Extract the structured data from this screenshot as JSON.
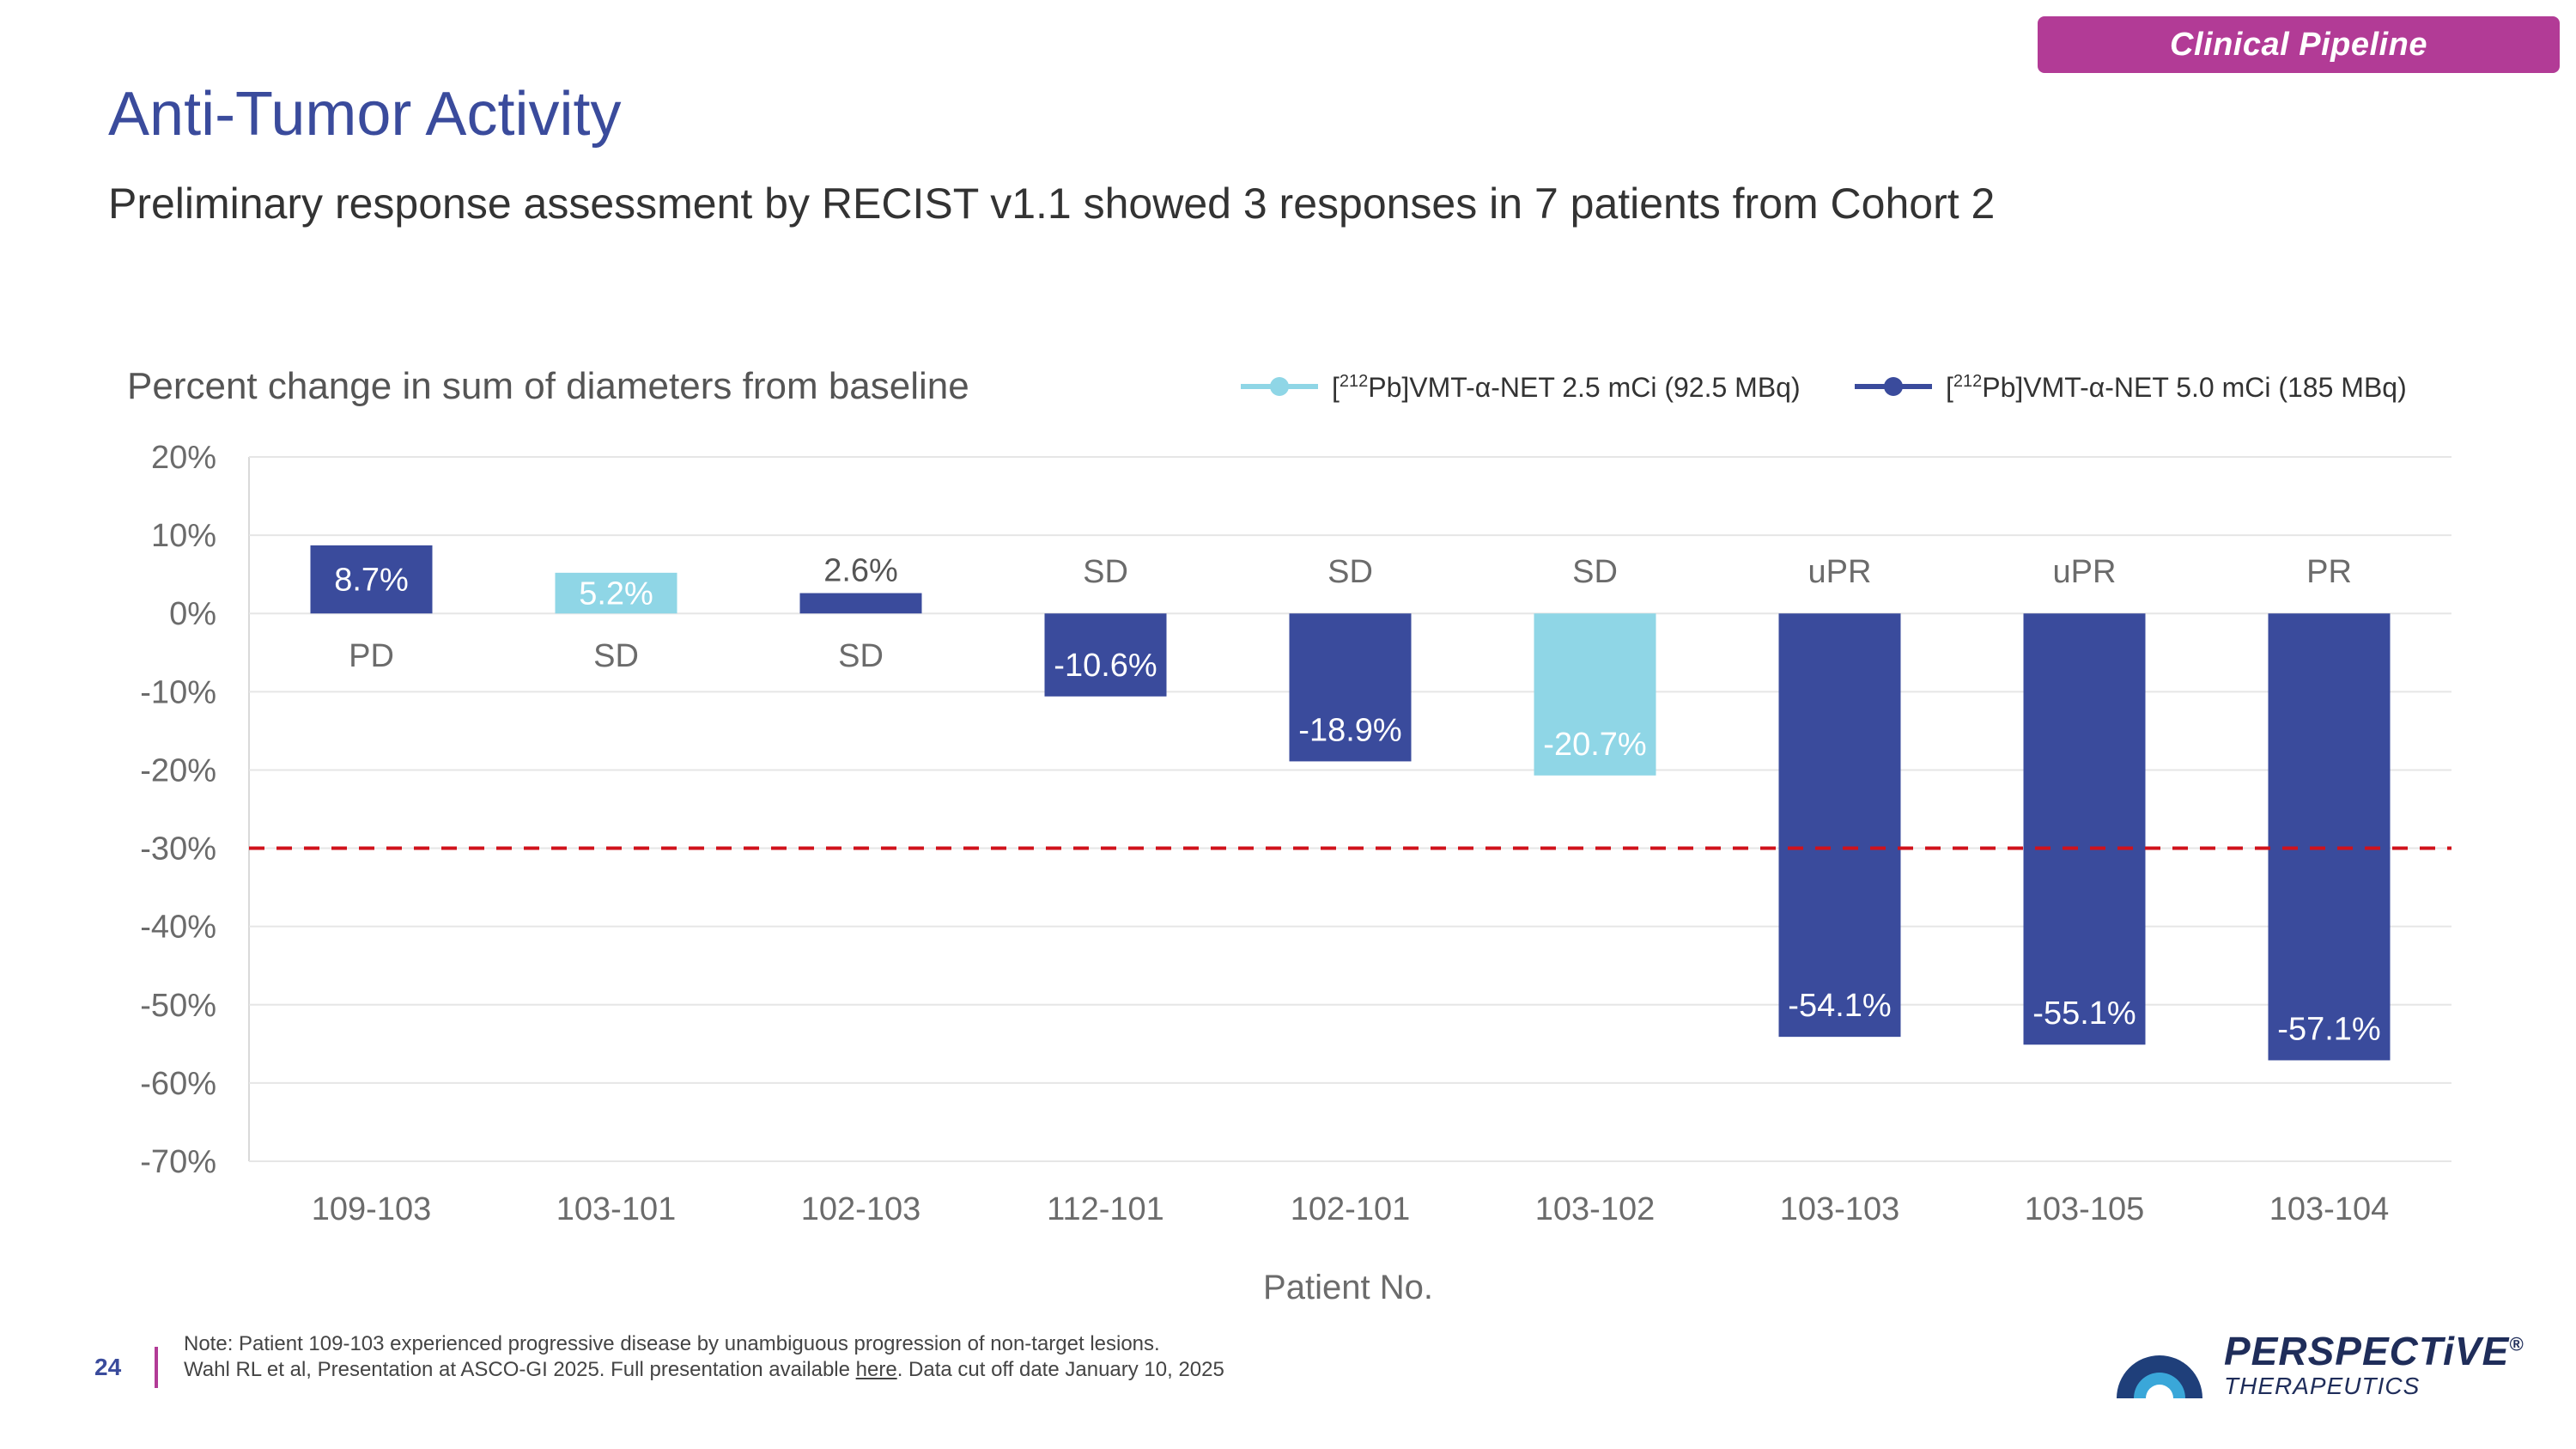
{
  "header": {
    "badge": "Clinical Pipeline",
    "title": "Anti-Tumor Activity",
    "subtitle": "Preliminary response assessment by RECIST v1.1 showed 3 responses in 7 patients from Cohort 2"
  },
  "colors": {
    "dose_2_5": "#8fd6e6",
    "dose_5_0": "#3a4b9c",
    "threshold": "#d0121b",
    "badge": "#b23b96",
    "title": "#3a4b9c"
  },
  "chart_data": {
    "type": "bar",
    "title": "Percent change in sum of diameters from baseline",
    "xlabel": "Patient No.",
    "ylabel": "",
    "ylim": [
      -70,
      20
    ],
    "yticks": [
      20,
      10,
      0,
      -10,
      -20,
      -30,
      -40,
      -50,
      -60,
      -70
    ],
    "ytick_labels": [
      "20%",
      "10%",
      "0%",
      "-10%",
      "-20%",
      "-30%",
      "-40%",
      "-50%",
      "-60%",
      "-70%"
    ],
    "threshold": -30,
    "grid": true,
    "legend": [
      {
        "pre": "[",
        "sup": "212",
        "post": "Pb]VMT-α-NET 2.5 mCi (92.5 MBq)",
        "color": "#8fd6e6"
      },
      {
        "pre": "[",
        "sup": "212",
        "post": "Pb]VMT-α-NET 5.0 mCi (185 MBq)",
        "color": "#3a4b9c"
      }
    ],
    "legend_position": "top-right",
    "categories": [
      "109-103",
      "103-101",
      "102-103",
      "112-101",
      "102-101",
      "103-102",
      "103-103",
      "103-105",
      "103-104"
    ],
    "values": [
      8.7,
      5.2,
      2.6,
      -10.6,
      -18.9,
      -20.7,
      -54.1,
      -55.1,
      -57.1
    ],
    "value_labels": [
      "8.7%",
      "5.2%",
      "2.6%",
      "-10.6%",
      "-18.9%",
      "-20.7%",
      "-54.1%",
      "-55.1%",
      "-57.1%"
    ],
    "responses": [
      "PD",
      "SD",
      "SD",
      "SD",
      "SD",
      "SD",
      "uPR",
      "uPR",
      "PR"
    ],
    "dose_group": [
      1,
      0,
      1,
      1,
      1,
      0,
      1,
      1,
      1
    ]
  },
  "footer": {
    "page_number": "24",
    "note_line1": "Note: Patient 109-103 experienced progressive disease by unambiguous progression of non-target lesions.",
    "note_line2_a": "Wahl RL et al, Presentation at ASCO-GI 2025. Full presentation available ",
    "note_link": "here",
    "note_line2_b": ". Data cut off date January 10, 2025",
    "logo_name": "PERSPECTiVE",
    "logo_reg": "®",
    "logo_sub": "THERAPEUTICS"
  }
}
